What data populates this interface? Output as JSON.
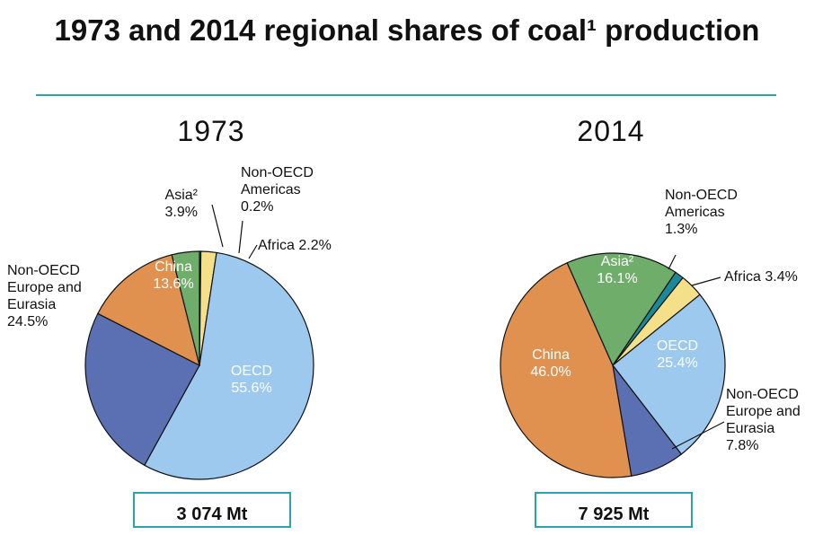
{
  "title": "1973 and 2014 regional shares of coal¹ production",
  "chart_data": [
    {
      "type": "pie",
      "title": "1973",
      "categories": [
        "Non-OECD Americas",
        "Africa",
        "OECD",
        "Non-OECD Europe and Eurasia",
        "China",
        "Asia²"
      ],
      "values": [
        0.2,
        2.2,
        55.6,
        24.5,
        13.6,
        3.9
      ],
      "value_labels": [
        "0.2%",
        "2.2%",
        "55.6%",
        "24.5%",
        "13.6%",
        "3.9%"
      ],
      "colors": [
        "#1a8a9a",
        "#f5e08a",
        "#9dc9ef",
        "#5b6fb3",
        "#e0914f",
        "#6fae6a"
      ],
      "total": "3 074 Mt"
    },
    {
      "type": "pie",
      "title": "2014",
      "categories": [
        "Non-OECD Americas",
        "Africa",
        "OECD",
        "Non-OECD Europe and Eurasia",
        "China",
        "Asia²"
      ],
      "values": [
        1.3,
        3.4,
        25.4,
        7.8,
        46.0,
        16.1
      ],
      "value_labels": [
        "1.3%",
        "3.4%",
        "25.4%",
        "7.8%",
        "46.0%",
        "16.1%"
      ],
      "colors": [
        "#1a8a9a",
        "#f5e08a",
        "#9dc9ef",
        "#5b6fb3",
        "#e0914f",
        "#6fae6a"
      ],
      "total": "7 925 Mt"
    }
  ]
}
